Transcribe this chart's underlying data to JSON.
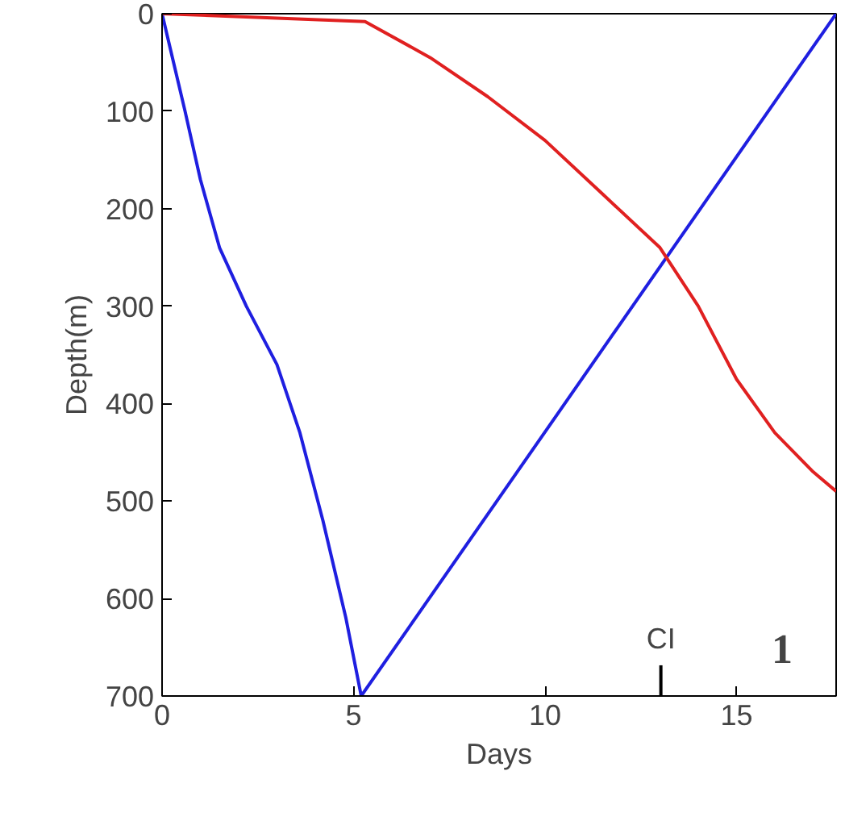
{
  "chart_data": {
    "type": "line",
    "xlabel": "Days",
    "ylabel": "Depth(m)",
    "xlim": [
      0,
      17.6
    ],
    "ylim": [
      700,
      0
    ],
    "xticks": [
      0,
      5,
      10,
      15
    ],
    "yticks": [
      0,
      100,
      200,
      300,
      400,
      500,
      600,
      700
    ],
    "grid": false,
    "marker": "none",
    "line_style": "solid",
    "series": [
      {
        "color": "#1f1fe0",
        "x": [
          0,
          0.3,
          0.6,
          1.0,
          1.5,
          2.2,
          3.0,
          3.6,
          4.2,
          4.8,
          5.2,
          17.6
        ],
        "values": [
          0,
          50,
          100,
          170,
          240,
          300,
          360,
          430,
          520,
          620,
          700,
          0
        ]
      },
      {
        "color": "#e02020",
        "x": [
          0,
          5.3,
          7,
          8.5,
          10,
          11.5,
          13,
          14,
          15,
          16,
          17,
          17.6
        ],
        "values": [
          0,
          8,
          45,
          85,
          130,
          185,
          240,
          300,
          375,
          430,
          470,
          490
        ]
      }
    ],
    "annotations": [
      "CI",
      "1"
    ]
  }
}
